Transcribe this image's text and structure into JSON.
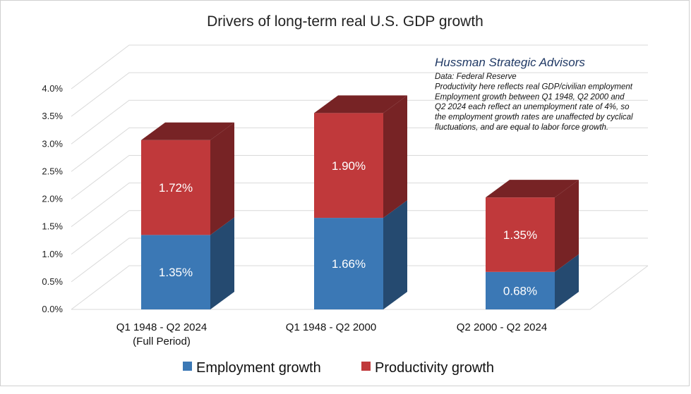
{
  "chart_data": {
    "type": "bar",
    "stacked": true,
    "style": "3d",
    "title": "Drivers of long-term real U.S. GDP growth",
    "categories": [
      [
        "Q1 1948 - Q2 2024",
        "(Full Period)"
      ],
      [
        "Q1 1948 - Q2 2000"
      ],
      [
        "Q2 2000 - Q2 2024"
      ]
    ],
    "series": [
      {
        "name": "Employment growth",
        "color": "#3b78b5",
        "values": [
          1.35,
          1.66,
          0.68
        ],
        "labels": [
          "1.35%",
          "1.66%",
          "0.68%"
        ]
      },
      {
        "name": "Productivity growth",
        "color": "#c0393b",
        "values": [
          1.72,
          1.9,
          1.35
        ],
        "labels": [
          "1.72%",
          "1.90%",
          "1.35%"
        ]
      }
    ],
    "ylim": [
      0,
      4.0
    ],
    "yticks": [
      "0.0%",
      "0.5%",
      "1.0%",
      "1.5%",
      "2.0%",
      "2.5%",
      "3.0%",
      "3.5%",
      "4.0%"
    ],
    "grid": true,
    "legend": "bottom",
    "annotation": {
      "heading": "Hussman Strategic Advisors",
      "lines": [
        "Data: Federal Reserve",
        "Productivity here reflects real GDP/civilian employment",
        "Employment growth between Q1 1948, Q2 2000 and",
        "Q2 2024 each reflect an unemployment rate of 4%, so",
        "the employment growth rates are unaffected by cyclical",
        "fluctuations, and are equal to labor force growth."
      ]
    }
  }
}
